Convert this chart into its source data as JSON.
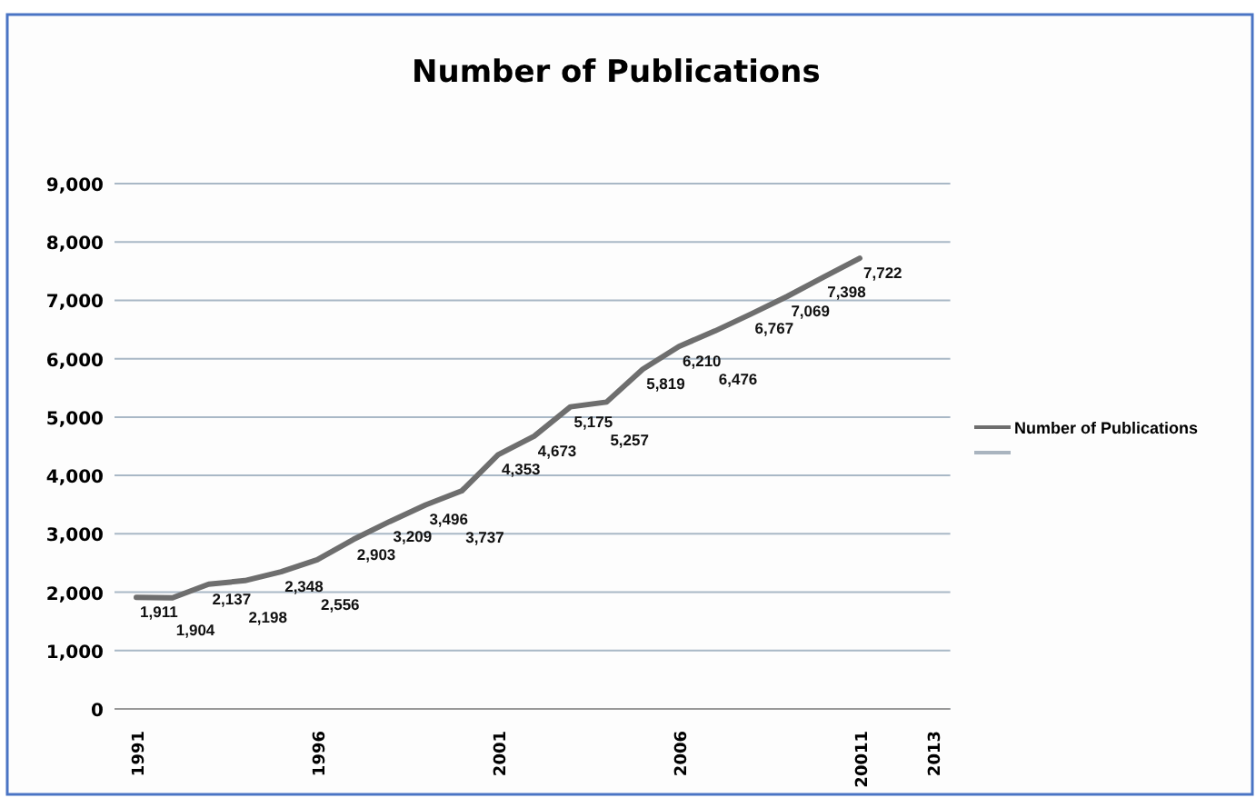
{
  "chart_data": {
    "type": "line",
    "title": "Number of Publications",
    "categories": [
      "1991",
      null,
      null,
      null,
      null,
      "1996",
      null,
      null,
      null,
      null,
      "2001",
      null,
      null,
      null,
      null,
      "2006",
      null,
      null,
      null,
      null,
      "20011",
      null,
      "2013"
    ],
    "series": [
      {
        "name": "Number of Publications",
        "color": "#6e6e6e",
        "values": [
          1911,
          1904,
          2137,
          2198,
          2348,
          2556,
          2903,
          3209,
          3496,
          3737,
          4353,
          4673,
          5175,
          5257,
          5819,
          6210,
          6476,
          6767,
          7069,
          7398,
          7722,
          null,
          null
        ],
        "value_labels": [
          "1,911",
          "1,904",
          "2,137",
          "2,198",
          "2,348",
          "2,556",
          "2,903",
          "3,209",
          "3,496",
          "3,737",
          "4,353",
          "4,673",
          "5,175",
          "5,257",
          "5,819",
          "6,210",
          "6,476",
          "6,767",
          "7,069",
          "7,398",
          "7,722",
          null,
          null
        ]
      },
      {
        "color": "#a9b4bf",
        "values": [
          null,
          null,
          null,
          null,
          null,
          null,
          null,
          null,
          null,
          null,
          null,
          null,
          null,
          null,
          null,
          null,
          null,
          null,
          null,
          null,
          null,
          null,
          null
        ]
      }
    ],
    "ylim": [
      0,
      9000
    ],
    "yticks": [
      {
        "value": 0,
        "label": "0"
      },
      {
        "value": 1000,
        "label": "1,000"
      },
      {
        "value": 2000,
        "label": "2,000"
      },
      {
        "value": 3000,
        "label": "3,000"
      },
      {
        "value": 4000,
        "label": "4,000"
      },
      {
        "value": 5000,
        "label": "5,000"
      },
      {
        "value": 6000,
        "label": "6,000"
      },
      {
        "value": 7000,
        "label": "7,000"
      },
      {
        "value": 8000,
        "label": "8,000"
      },
      {
        "value": 9000,
        "label": "9,000"
      }
    ],
    "grid": "y",
    "legend": "right",
    "marker": "none",
    "line_style": "solid"
  }
}
